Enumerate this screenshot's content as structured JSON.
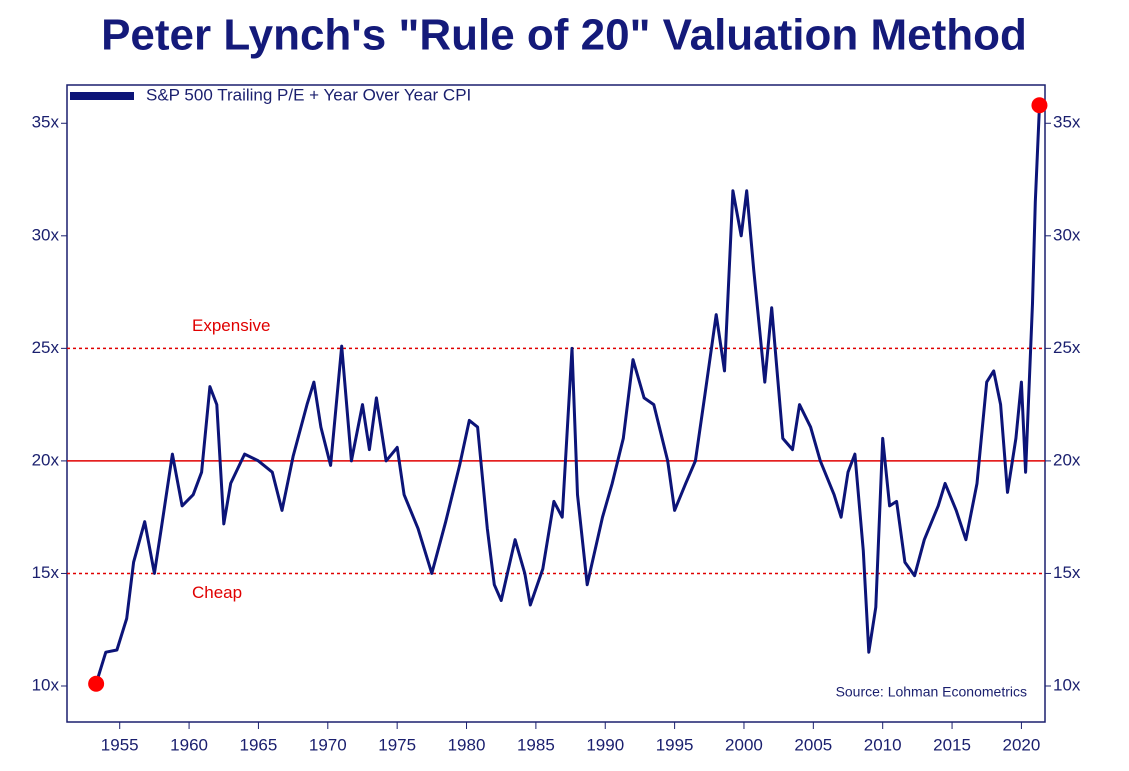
{
  "chart_data": {
    "type": "line",
    "title": "Peter Lynch's \"Rule of 20\" Valuation Method",
    "source": "Source: Lohman Econometrics",
    "legend_position": "upper left",
    "endpoint_markers": true,
    "endpoint_marker_color": "#ff0000",
    "xlim": [
      1951.2,
      2021.7
    ],
    "ylim": [
      8.4,
      36.7
    ],
    "xticks": [
      1955,
      1960,
      1965,
      1970,
      1975,
      1980,
      1985,
      1990,
      1995,
      2000,
      2005,
      2010,
      2015,
      2020
    ],
    "yticks": [
      {
        "value": 10,
        "label": "10x"
      },
      {
        "value": 15,
        "label": "15x"
      },
      {
        "value": 20,
        "label": "20x"
      },
      {
        "value": 25,
        "label": "25x"
      },
      {
        "value": 30,
        "label": "30x"
      },
      {
        "value": 35,
        "label": "35x"
      }
    ],
    "reference_lines": [
      {
        "value": 25,
        "label": "Expensive",
        "style": "dashed",
        "label_side": "above",
        "color": "#e00000"
      },
      {
        "value": 20,
        "style": "solid",
        "color": "#e00000"
      },
      {
        "value": 15,
        "label": "Cheap",
        "style": "dashed",
        "label_side": "below",
        "color": "#e00000"
      }
    ],
    "x": [
      1953.3,
      1954,
      1954.8,
      1955.5,
      1956,
      1956.8,
      1957.5,
      1958,
      1958.8,
      1959.5,
      1960.3,
      1960.9,
      1961.5,
      1962,
      1962.5,
      1963,
      1964,
      1965,
      1966,
      1966.7,
      1967.5,
      1968.5,
      1969,
      1969.5,
      1970.2,
      1971,
      1971.7,
      1972.5,
      1973,
      1973.5,
      1974.2,
      1975,
      1975.5,
      1976.5,
      1977.5,
      1978.5,
      1979.5,
      1980.2,
      1980.8,
      1981.5,
      1982,
      1982.5,
      1983.5,
      1984.2,
      1984.6,
      1985.5,
      1986.3,
      1986.9,
      1987.6,
      1988,
      1988.7,
      1989.8,
      1990.5,
      1991.3,
      1992,
      1992.8,
      1993.5,
      1994.5,
      1995,
      1995.8,
      1996.5,
      1997.2,
      1998,
      1998.6,
      1999.2,
      1999.8,
      2000.2,
      2000.7,
      2001.5,
      2002,
      2002.8,
      2003.5,
      2004,
      2004.8,
      2005.5,
      2006.5,
      2007,
      2007.5,
      2008,
      2008.6,
      2009,
      2009.5,
      2010,
      2010.5,
      2011,
      2011.6,
      2012.3,
      2013,
      2014,
      2014.5,
      2015.3,
      2016,
      2016.8,
      2017.5,
      2018,
      2018.5,
      2019,
      2019.6,
      2020,
      2020.3,
      2020.8,
      2021,
      2021.3
    ],
    "series": [
      {
        "name": "S&P 500 Trailing P/E + Year Over Year CPI",
        "color": "#0c1478",
        "values": [
          10.1,
          11.5,
          11.6,
          13,
          15.5,
          17.3,
          15,
          17,
          20.3,
          18,
          18.5,
          19.5,
          23.3,
          22.5,
          17.2,
          19,
          20.3,
          20,
          19.5,
          17.8,
          20.2,
          22.5,
          23.5,
          21.5,
          19.8,
          25.1,
          20,
          22.5,
          20.5,
          22.8,
          20,
          20.6,
          18.5,
          17,
          15,
          17.3,
          19.8,
          21.8,
          21.5,
          17,
          14.5,
          13.8,
          16.5,
          15,
          13.6,
          15.2,
          18.2,
          17.5,
          25,
          18.5,
          14.5,
          17.5,
          19,
          21,
          24.5,
          22.8,
          22.5,
          20,
          17.8,
          19,
          20,
          23,
          26.5,
          24,
          32,
          30,
          32,
          28.5,
          23.5,
          26.8,
          21,
          20.5,
          22.5,
          21.5,
          20,
          18.5,
          17.5,
          19.5,
          20.3,
          16,
          11.5,
          13.5,
          21,
          18,
          18.2,
          15.5,
          14.9,
          16.5,
          18,
          19,
          17.8,
          16.5,
          19,
          23.5,
          24,
          22.5,
          18.6,
          21,
          23.5,
          19.5,
          27,
          31.5,
          35.8
        ]
      }
    ]
  }
}
